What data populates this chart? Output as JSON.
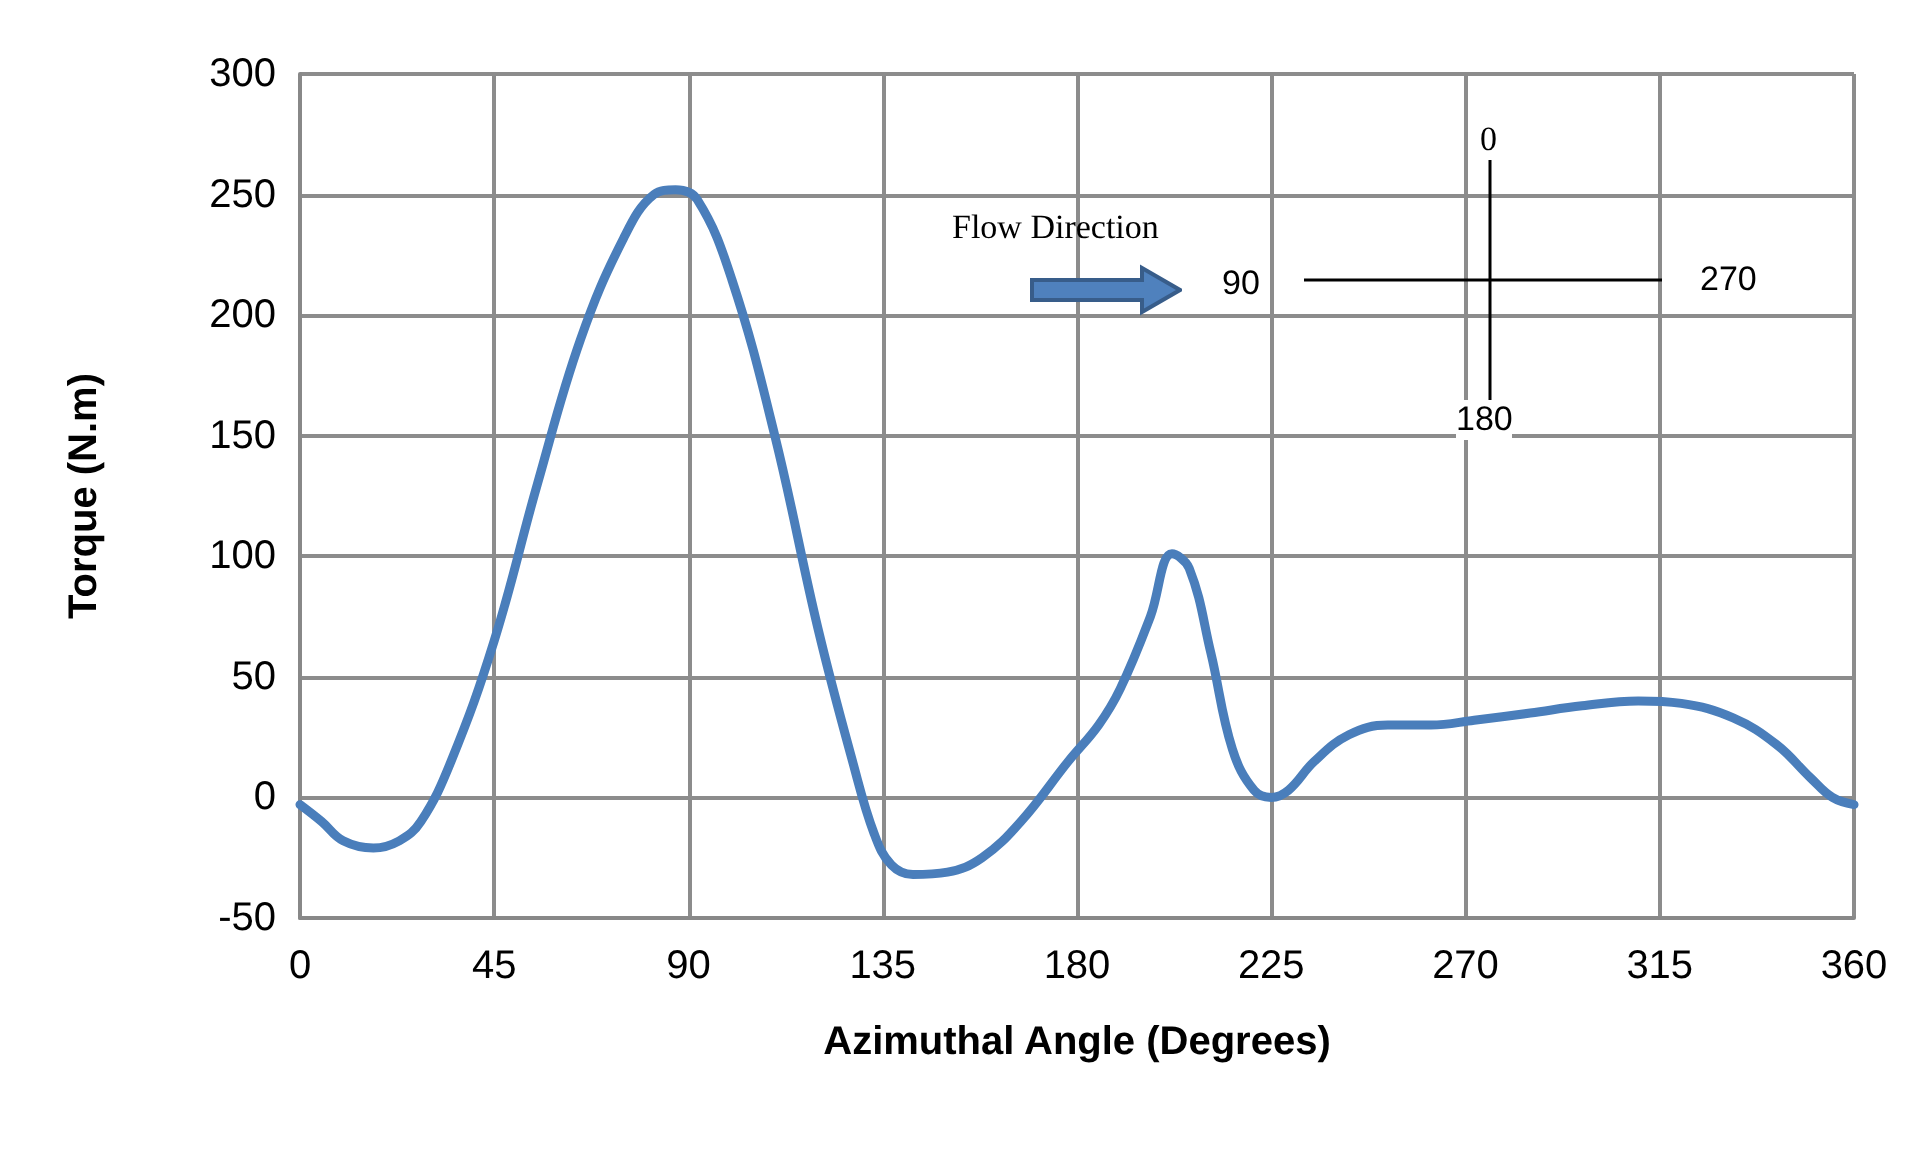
{
  "chart_data": {
    "type": "line",
    "xlabel": "Azimuthal Angle (Degrees)",
    "ylabel": "Torque (N.m)",
    "x": [
      0,
      5,
      10,
      17,
      23,
      28,
      35,
      45,
      55,
      65,
      75,
      82,
      87,
      92,
      100,
      110,
      120,
      128,
      133,
      137,
      142,
      150,
      158,
      167,
      178,
      185,
      190,
      197,
      202,
      206,
      211,
      216,
      221,
      225,
      229,
      235,
      243,
      252,
      262,
      272,
      285,
      297,
      310,
      320,
      332,
      342,
      350,
      355,
      360
    ],
    "series": [
      {
        "color": "#4a7ebb",
        "values": [
          -3,
          -10,
          -18,
          -21,
          -18,
          -10,
          15,
          65,
          130,
          190,
          232,
          250,
          252,
          248,
          215,
          150,
          70,
          15,
          -15,
          -28,
          -32,
          -31,
          -25,
          -10,
          15,
          30,
          45,
          75,
          101,
          95,
          60,
          20,
          3,
          0,
          3,
          15,
          26,
          30,
          30,
          32,
          35,
          38,
          40,
          39,
          33,
          22,
          8,
          0,
          -3
        ]
      }
    ],
    "xlim": [
      0,
      360
    ],
    "xticks": [
      0,
      45,
      90,
      135,
      180,
      225,
      270,
      315,
      360
    ],
    "ylim": [
      -50,
      300
    ],
    "yticks": [
      -50,
      0,
      50,
      100,
      150,
      200,
      250,
      300
    ],
    "grid": true,
    "marker": "none",
    "line_style": "solid",
    "annotations": [
      "Flow Direction",
      "0",
      "90",
      "180",
      "270"
    ]
  }
}
